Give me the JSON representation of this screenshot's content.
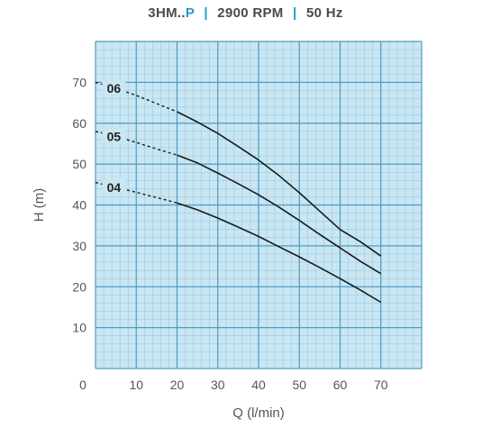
{
  "title": {
    "model_prefix": "3HM..",
    "model_suffix": "P",
    "sep": "|",
    "speed": "2900 RPM",
    "frequency": "50 Hz"
  },
  "chart_data": {
    "type": "line",
    "title": "3HM..P | 2900 RPM | 50 Hz",
    "xlabel": "Q (l/min)",
    "ylabel": "H (m)",
    "xlim": [
      0,
      80
    ],
    "ylim": [
      0,
      80
    ],
    "x_ticks": [
      0,
      10,
      20,
      30,
      40,
      50,
      60,
      70
    ],
    "y_ticks": [
      10,
      20,
      30,
      40,
      50,
      60,
      70
    ],
    "grid": true,
    "colors": {
      "grid_background": "#c9e6f2",
      "grid_minor": "#8fc7df",
      "grid_major": "#4d9cc4",
      "curve": "#1a1a1a"
    },
    "series": [
      {
        "name": "06",
        "dashed_x": [
          0,
          5,
          10,
          15,
          20
        ],
        "dashed_y": [
          70,
          68.5,
          66.8,
          64.8,
          62.8
        ],
        "x": [
          20,
          25,
          30,
          35,
          40,
          45,
          50,
          55,
          60,
          65,
          70
        ],
        "y": [
          62.8,
          60.3,
          57.5,
          54.3,
          51,
          47.2,
          43,
          38.5,
          34,
          31,
          27.5
        ]
      },
      {
        "name": "05",
        "dashed_x": [
          0,
          5,
          10,
          15,
          20
        ],
        "dashed_y": [
          58,
          56.8,
          55.3,
          53.7,
          52.2
        ],
        "x": [
          20,
          25,
          30,
          35,
          40,
          45,
          50,
          55,
          60,
          65,
          70
        ],
        "y": [
          52.2,
          50.3,
          47.8,
          45.2,
          42.5,
          39.5,
          36.2,
          32.8,
          29.5,
          26.2,
          23.2
        ]
      },
      {
        "name": "04",
        "dashed_x": [
          0,
          5,
          10,
          15,
          20
        ],
        "dashed_y": [
          45.5,
          44.3,
          43.1,
          41.8,
          40.5
        ],
        "x": [
          20,
          25,
          30,
          35,
          40,
          45,
          50,
          55,
          60,
          65,
          70
        ],
        "y": [
          40.5,
          38.8,
          36.8,
          34.6,
          32.3,
          29.8,
          27.3,
          24.7,
          22,
          19.2,
          16.2
        ]
      }
    ]
  }
}
